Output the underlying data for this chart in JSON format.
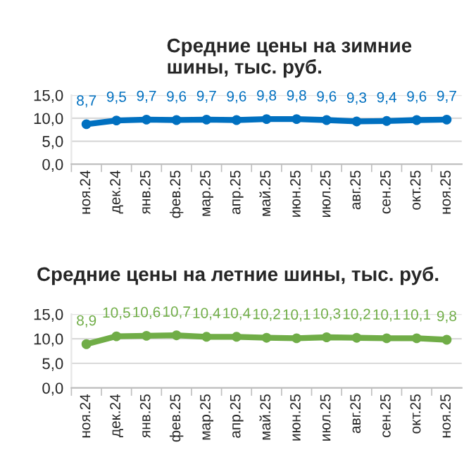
{
  "chart_data": [
    {
      "type": "line",
      "title": "Средние цены на зимние шины, тыс. руб.",
      "categories": [
        "ноя.24",
        "дек.24",
        "янв.25",
        "фев.25",
        "мар.25",
        "апр.25",
        "май.25",
        "июн.25",
        "июл.25",
        "авг.25",
        "сен.25",
        "окт.25",
        "ноя.25"
      ],
      "series": [
        {
          "color": "#0070c0",
          "values": [
            8.7,
            9.5,
            9.7,
            9.6,
            9.7,
            9.6,
            9.8,
            9.8,
            9.6,
            9.3,
            9.4,
            9.6,
            9.7
          ],
          "value_labels": [
            "8,7",
            "9,5",
            "9,7",
            "9,6",
            "9,7",
            "9,6",
            "9,8",
            "9,8",
            "9,6",
            "9,3",
            "9,4",
            "9,6",
            "9,7"
          ]
        }
      ],
      "ylim": [
        0,
        15
      ],
      "yticks": [
        {
          "value": 0,
          "label": "0,0"
        },
        {
          "value": 5,
          "label": "5,0"
        },
        {
          "value": 10,
          "label": "10,0"
        },
        {
          "value": 15,
          "label": "15,0"
        }
      ],
      "grid": "y",
      "marker": "circle",
      "line_style": "solid"
    },
    {
      "type": "line",
      "title": "Средние цены на летние шины, тыс. руб.",
      "categories": [
        "ноя.24",
        "дек.24",
        "янв.25",
        "фев.25",
        "мар.25",
        "апр.25",
        "май.25",
        "июн.25",
        "июл.25",
        "авг.25",
        "сен.25",
        "окт.25",
        "ноя.25"
      ],
      "series": [
        {
          "color": "#70ad47",
          "values": [
            8.9,
            10.5,
            10.6,
            10.7,
            10.4,
            10.4,
            10.2,
            10.1,
            10.3,
            10.2,
            10.1,
            10.1,
            9.8
          ],
          "value_labels": [
            "8,9",
            "10,5",
            "10,6",
            "10,7",
            "10,4",
            "10,4",
            "10,2",
            "10,1",
            "10,3",
            "10,2",
            "10,1",
            "10,1",
            "9,8"
          ]
        }
      ],
      "ylim": [
        0,
        15
      ],
      "yticks": [
        {
          "value": 0,
          "label": "0,0"
        },
        {
          "value": 5,
          "label": "5,0"
        },
        {
          "value": 10,
          "label": "10,0"
        },
        {
          "value": 15,
          "label": "15,0"
        }
      ],
      "grid": "y",
      "marker": "circle",
      "line_style": "solid"
    }
  ]
}
